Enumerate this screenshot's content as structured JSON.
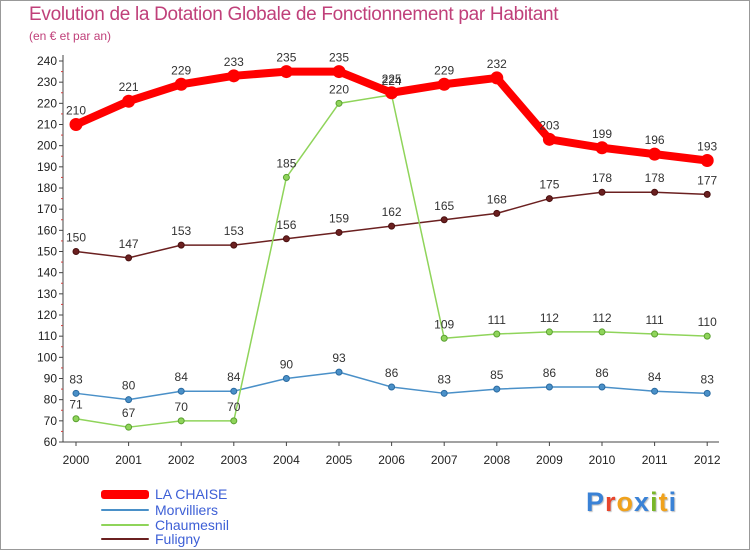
{
  "title": "Evolution de la Dotation Globale de Fonctionnement par Habitant",
  "subtitle": "(en € et par an)",
  "colors": {
    "text_accent": "#c0407a",
    "label_blue": "#3d5fd6"
  },
  "logo": {
    "letters": [
      "P",
      "r",
      "o",
      "x",
      "i",
      "t",
      "i"
    ],
    "colors": [
      "#3a82d6",
      "#e8452c",
      "#f0a21c",
      "#3a82d6",
      "#79b629",
      "#f0a21c",
      "#3a82d6"
    ]
  },
  "chart_data": {
    "type": "line",
    "title": "Evolution de la Dotation Globale de Fonctionnement par Habitant",
    "subtitle": "(en € et par an)",
    "xlabel": "",
    "ylabel": "",
    "categories": [
      "2000",
      "2001",
      "2002",
      "2003",
      "2004",
      "2005",
      "2006",
      "2007",
      "2008",
      "2009",
      "2010",
      "2011",
      "2012"
    ],
    "yticks": [
      60,
      70,
      80,
      90,
      100,
      110,
      120,
      130,
      140,
      150,
      160,
      170,
      180,
      190,
      200,
      210,
      220,
      230,
      240
    ],
    "ylim": [
      60,
      240
    ],
    "grid": false,
    "legend_position": "bottom-left",
    "series": [
      {
        "name": "LA CHAISE",
        "color": "#ff0000",
        "values": [
          210,
          221,
          229,
          233,
          235,
          235,
          225,
          229,
          232,
          203,
          199,
          196,
          193
        ]
      },
      {
        "name": "Morvilliers",
        "color": "#4a90c8",
        "values": [
          83,
          80,
          84,
          84,
          90,
          93,
          86,
          83,
          85,
          86,
          86,
          84,
          83
        ]
      },
      {
        "name": "Chaumesnil",
        "color": "#8fd45a",
        "values": [
          71,
          67,
          70,
          70,
          185,
          220,
          224,
          109,
          111,
          112,
          112,
          111,
          110
        ]
      },
      {
        "name": "Fuligny",
        "color": "#6b2020",
        "values": [
          150,
          147,
          153,
          153,
          156,
          159,
          162,
          165,
          168,
          175,
          178,
          178,
          177
        ]
      }
    ]
  }
}
